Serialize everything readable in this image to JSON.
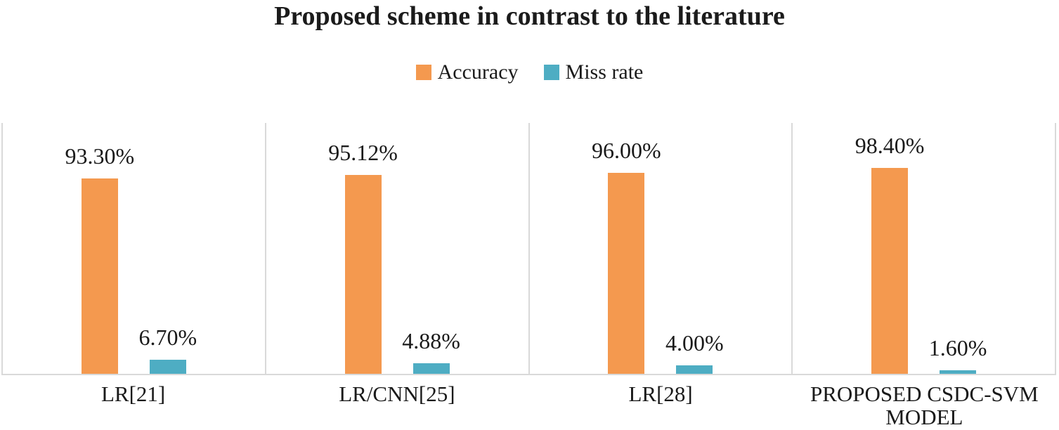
{
  "chart_data": {
    "type": "bar",
    "title": "Proposed scheme in contrast to the literature",
    "categories": [
      "LR[21]",
      "LR/CNN[25]",
      "LR[28]",
      "PROPOSED CSDC-SVM MODEL"
    ],
    "series": [
      {
        "name": "Accuracy",
        "color": "#F4994F",
        "values": [
          93.3,
          95.12,
          96.0,
          98.4
        ],
        "labels": [
          "93.30%",
          "95.12%",
          "96.00%",
          "98.40%"
        ]
      },
      {
        "name": "Miss rate",
        "color": "#4EADC3",
        "values": [
          6.7,
          4.88,
          4.0,
          1.6
        ],
        "labels": [
          "6.70%",
          "4.88%",
          "4.00%",
          "1.60%"
        ]
      }
    ],
    "xlabel": "",
    "ylabel": "",
    "ylim": [
      0,
      120
    ],
    "y_axis_visible": false,
    "grid": "vertical category separator lines and baseline only",
    "gridline_color": "#D9D9D9",
    "legend_position": "top-center",
    "data_labels_position": "outside-end",
    "text_color": "#1A1A1A",
    "background_color": "#FFFFFF"
  }
}
